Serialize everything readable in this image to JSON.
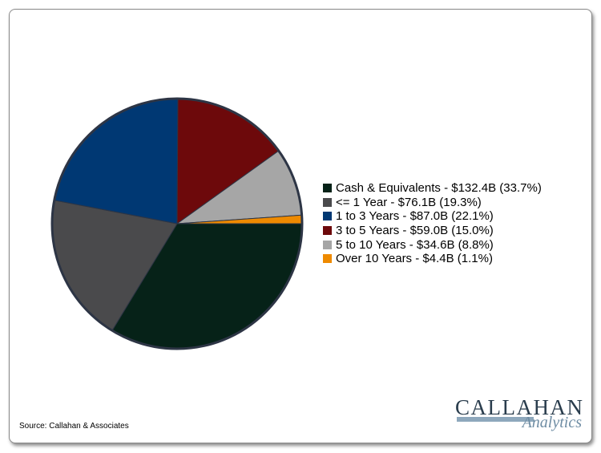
{
  "chart_data": {
    "type": "pie",
    "title": "",
    "series": [
      {
        "label": "Cash & Equivalents - $132.4B (33.7%)",
        "value": 33.7,
        "color": "#062218"
      },
      {
        "label": "<= 1 Year - $76.1B (19.3%)",
        "value": 19.3,
        "color": "#4a4a4c"
      },
      {
        "label": "1 to 3 Years - $87.0B (22.1%)",
        "value": 22.1,
        "color": "#003873"
      },
      {
        "label": "3 to 5 Years - $59.0B (15.0%)",
        "value": 15.0,
        "color": "#6d090b"
      },
      {
        "label": "5 to 10 Years - $34.6B (8.8%)",
        "value": 8.8,
        "color": "#a6a6a6"
      },
      {
        "label": "Over 10 Years - $4.4B (1.1%)",
        "value": 1.1,
        "color": "#ee8a00"
      }
    ],
    "legend_position": "right",
    "start_angle": "3 o'clock",
    "direction": "clockwise",
    "outline_color": "#2d3545"
  },
  "source": "Source: Callahan & Associates",
  "logo": {
    "top": "CALLAHAN",
    "sub": "Analytics"
  }
}
